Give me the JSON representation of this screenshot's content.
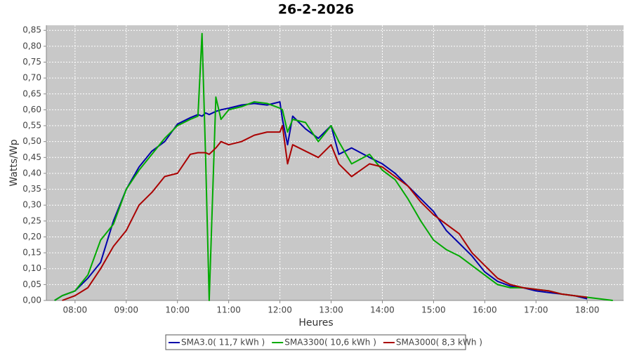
{
  "chart_data": {
    "type": "line",
    "title": "26-2-2026",
    "x_label": "Heures",
    "y_label": "Watts/Wp",
    "x": [
      7.6,
      7.75,
      8.0,
      8.25,
      8.5,
      8.75,
      9.0,
      9.25,
      9.5,
      9.75,
      10.0,
      10.25,
      10.4,
      10.48,
      10.55,
      10.62,
      10.75,
      10.85,
      11.0,
      11.25,
      11.5,
      11.75,
      12.0,
      12.05,
      12.15,
      12.25,
      12.5,
      12.75,
      13.0,
      13.15,
      13.4,
      13.75,
      14.0,
      14.25,
      14.5,
      14.75,
      15.0,
      15.25,
      15.5,
      15.75,
      16.0,
      16.25,
      16.5,
      16.75,
      17.0,
      17.25,
      17.5,
      17.75,
      18.0,
      18.25,
      18.5
    ],
    "series": [
      {
        "name": "SMA3.0( 11,7 kWh )",
        "color": "#0000aa",
        "values": [
          0.0,
          0.015,
          0.03,
          0.07,
          0.12,
          0.25,
          0.35,
          0.42,
          0.47,
          0.5,
          0.555,
          0.575,
          0.585,
          0.58,
          0.59,
          0.585,
          0.595,
          0.6,
          0.605,
          0.615,
          0.62,
          0.615,
          0.625,
          0.57,
          0.49,
          0.58,
          0.54,
          0.51,
          0.55,
          0.46,
          0.48,
          0.45,
          0.43,
          0.4,
          0.36,
          0.32,
          0.28,
          0.22,
          0.18,
          0.14,
          0.09,
          0.06,
          0.045,
          0.04,
          0.03,
          0.025,
          0.02,
          0.015,
          0.005,
          null,
          null
        ]
      },
      {
        "name": "SMA3300( 10,6 kWh )",
        "color": "#00aa00",
        "values": [
          0.0,
          0.015,
          0.03,
          0.08,
          0.19,
          0.24,
          0.35,
          0.41,
          0.46,
          0.51,
          0.55,
          0.57,
          0.58,
          0.84,
          0.45,
          0.0,
          0.64,
          0.57,
          0.6,
          0.61,
          0.625,
          0.62,
          0.605,
          0.6,
          0.53,
          0.57,
          0.56,
          0.5,
          0.55,
          0.5,
          0.43,
          0.46,
          0.41,
          0.38,
          0.32,
          0.25,
          0.19,
          0.16,
          0.14,
          0.11,
          0.08,
          0.05,
          0.04,
          0.04,
          0.035,
          0.03,
          0.02,
          0.015,
          0.01,
          0.005,
          0.0
        ]
      },
      {
        "name": "SMA3000( 8,3 kWh )",
        "color": "#aa0000",
        "values": [
          null,
          0.0,
          0.015,
          0.04,
          0.1,
          0.17,
          0.22,
          0.3,
          0.34,
          0.39,
          0.4,
          0.46,
          0.465,
          0.465,
          0.465,
          0.46,
          0.48,
          0.5,
          0.49,
          0.5,
          0.52,
          0.53,
          0.53,
          0.55,
          0.43,
          0.49,
          0.47,
          0.45,
          0.49,
          0.43,
          0.39,
          0.43,
          0.42,
          0.39,
          0.36,
          0.31,
          0.27,
          0.24,
          0.21,
          0.15,
          0.11,
          0.07,
          0.05,
          0.04,
          0.035,
          0.03,
          0.02,
          0.015,
          0.01,
          null,
          null
        ]
      }
    ],
    "xlim": [
      7.44,
      18.71
    ],
    "ylim": [
      0,
      0.866
    ],
    "xticks": [
      {
        "value": 8,
        "label": "08:00"
      },
      {
        "value": 9,
        "label": "09:00"
      },
      {
        "value": 10,
        "label": "10:00"
      },
      {
        "value": 11,
        "label": "11:00"
      },
      {
        "value": 12,
        "label": "12:00"
      },
      {
        "value": 13,
        "label": "13:00"
      },
      {
        "value": 14,
        "label": "14:00"
      },
      {
        "value": 15,
        "label": "15:00"
      },
      {
        "value": 16,
        "label": "16:00"
      },
      {
        "value": 17,
        "label": "17:00"
      },
      {
        "value": 18,
        "label": "18:00"
      }
    ],
    "yticks": [
      {
        "value": 0,
        "label": "0,00"
      },
      {
        "value": 0.05,
        "label": "0,05"
      },
      {
        "value": 0.1,
        "label": "0,10"
      },
      {
        "value": 0.15,
        "label": "0,15"
      },
      {
        "value": 0.2,
        "label": "0,20"
      },
      {
        "value": 0.25,
        "label": "0,25"
      },
      {
        "value": 0.3,
        "label": "0,30"
      },
      {
        "value": 0.35,
        "label": "0,35"
      },
      {
        "value": 0.4,
        "label": "0,40"
      },
      {
        "value": 0.45,
        "label": "0,45"
      },
      {
        "value": 0.5,
        "label": "0,50"
      },
      {
        "value": 0.55,
        "label": "0,55"
      },
      {
        "value": 0.6,
        "label": "0,60"
      },
      {
        "value": 0.65,
        "label": "0,65"
      },
      {
        "value": 0.7,
        "label": "0,70"
      },
      {
        "value": 0.75,
        "label": "0,75"
      },
      {
        "value": 0.8,
        "label": "0,80"
      },
      {
        "value": 0.85,
        "label": "0,85"
      }
    ],
    "grid": true,
    "legend": "bottom"
  }
}
